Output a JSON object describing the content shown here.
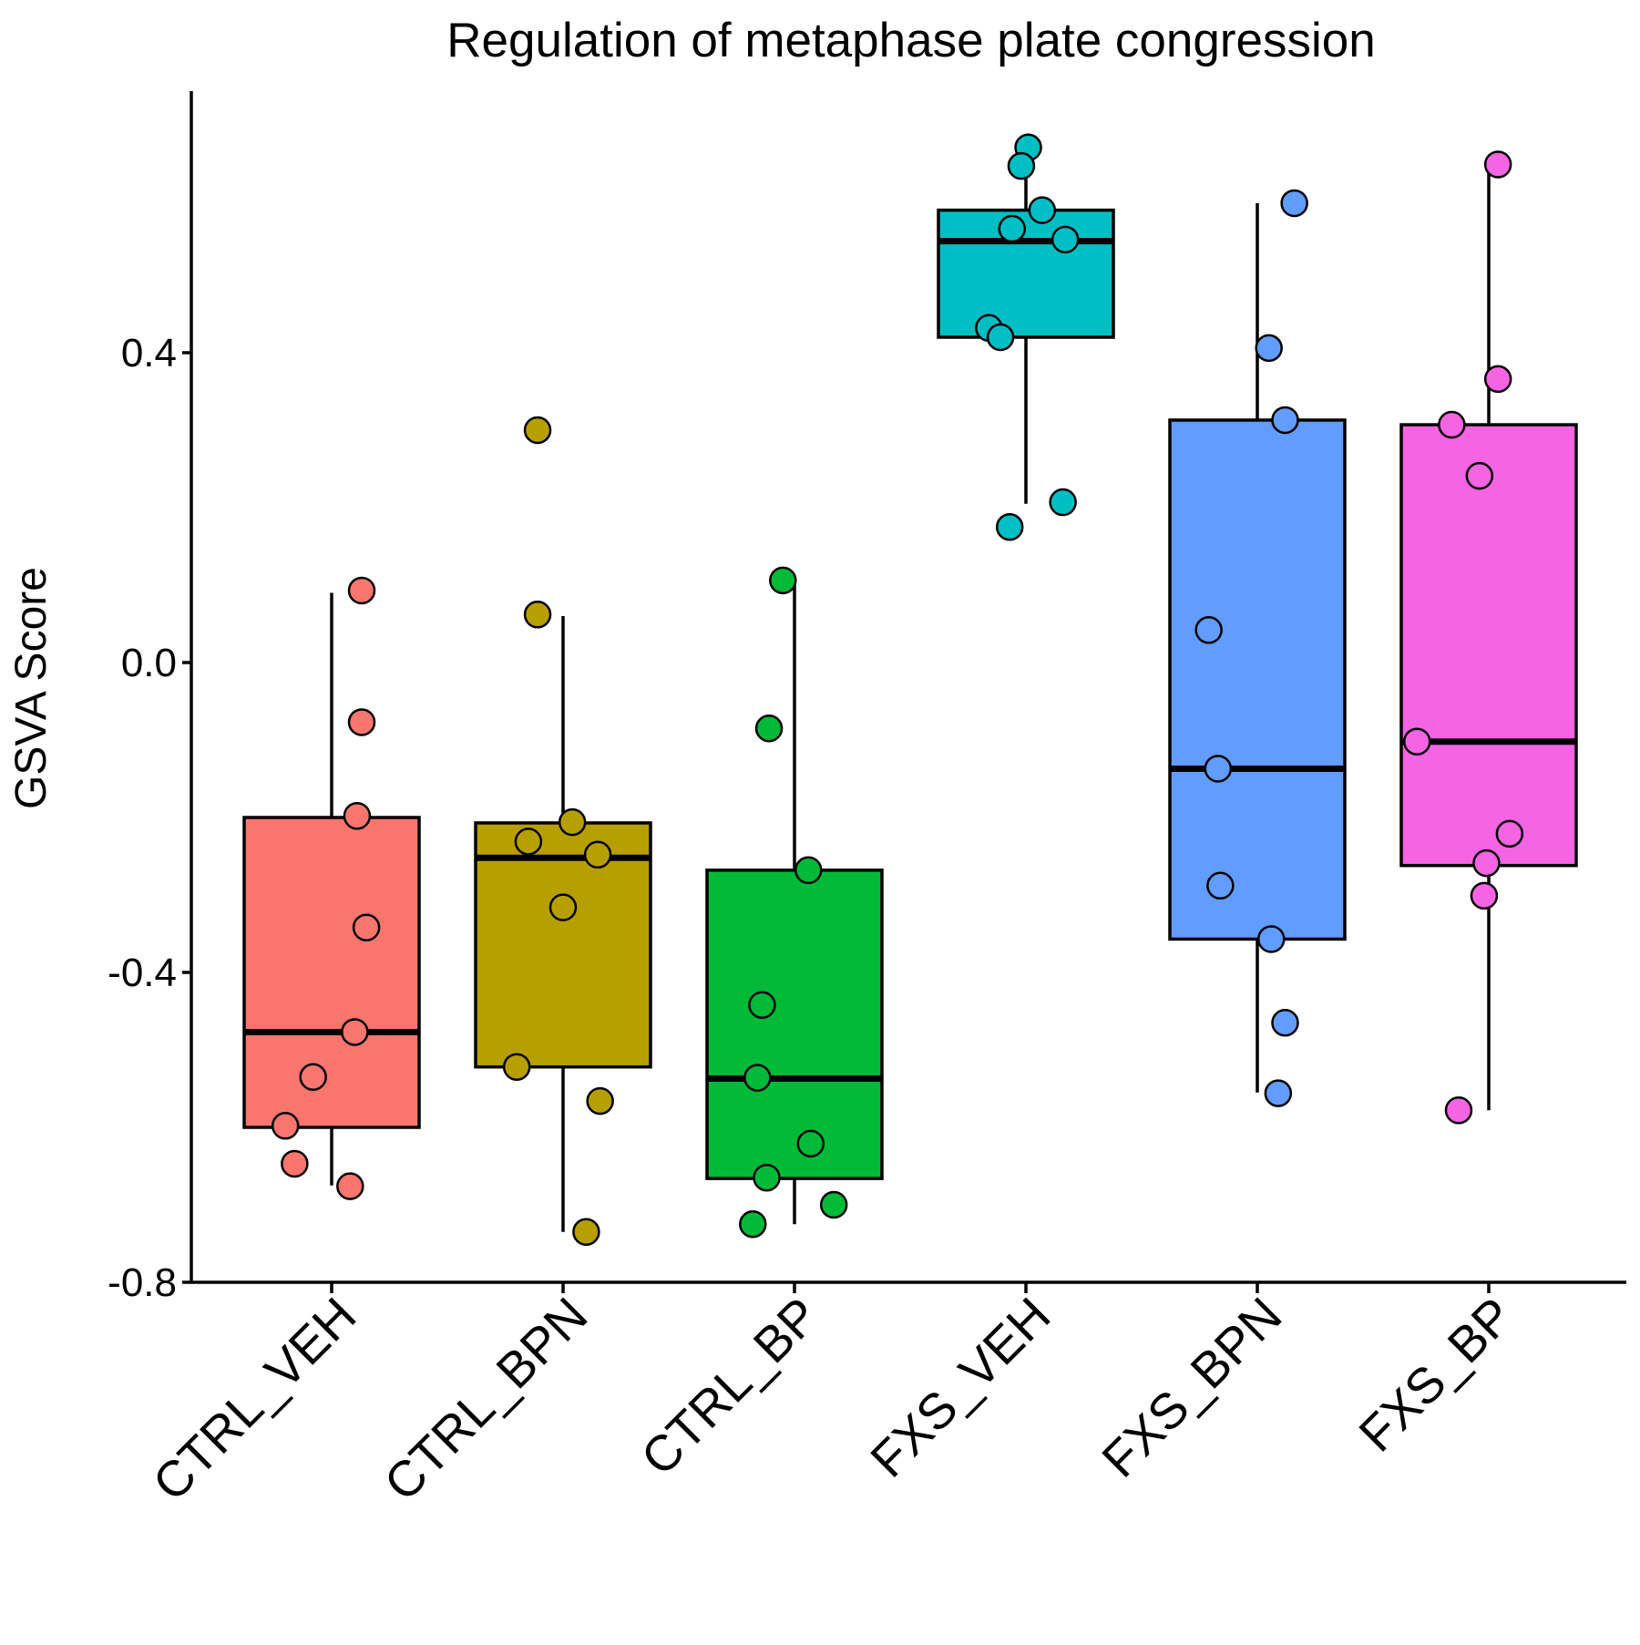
{
  "chart_data": {
    "type": "box",
    "title": "Regulation of metaphase plate congression",
    "xlabel": "",
    "ylabel": "GSVA Score",
    "ylim": [
      -0.8,
      0.74
    ],
    "yticks": [
      -0.8,
      -0.4,
      0.0,
      0.4
    ],
    "ytick_labels": [
      "-0.8",
      "-0.4",
      "0.0",
      "0.4"
    ],
    "grid": false,
    "legend": "none",
    "categories": [
      "CTRL_VEH",
      "CTRL_BPN",
      "CTRL_BP",
      "FXS_VEH",
      "FXS_BPN",
      "FXS_BP"
    ],
    "series": [
      {
        "category": "CTRL_VEH",
        "color": "#F8766D",
        "box": {
          "min": -0.675,
          "q1": -0.6,
          "median": -0.477,
          "q3": -0.2,
          "max": 0.09
        },
        "points": [
          {
            "x_offset": 0.13,
            "y": 0.093
          },
          {
            "x_offset": 0.13,
            "y": -0.077
          },
          {
            "x_offset": 0.11,
            "y": -0.198
          },
          {
            "x_offset": 0.15,
            "y": -0.342
          },
          {
            "x_offset": 0.1,
            "y": -0.477
          },
          {
            "x_offset": -0.08,
            "y": -0.535
          },
          {
            "x_offset": -0.2,
            "y": -0.598
          },
          {
            "x_offset": -0.16,
            "y": -0.647
          },
          {
            "x_offset": 0.08,
            "y": -0.676
          }
        ]
      },
      {
        "category": "CTRL_BPN",
        "color": "#B79F00",
        "box": {
          "min": -0.735,
          "q1": -0.522,
          "median": -0.252,
          "q3": -0.207,
          "max": 0.06
        },
        "points": [
          {
            "x_offset": -0.11,
            "y": 0.3
          },
          {
            "x_offset": -0.11,
            "y": 0.062
          },
          {
            "x_offset": 0.04,
            "y": -0.206
          },
          {
            "x_offset": -0.15,
            "y": -0.231
          },
          {
            "x_offset": 0.15,
            "y": -0.248
          },
          {
            "x_offset": 0.0,
            "y": -0.316
          },
          {
            "x_offset": -0.2,
            "y": -0.522
          },
          {
            "x_offset": 0.16,
            "y": -0.566
          },
          {
            "x_offset": 0.1,
            "y": -0.735
          }
        ]
      },
      {
        "category": "CTRL_BP",
        "color": "#00BA38",
        "box": {
          "min": -0.725,
          "q1": -0.666,
          "median": -0.537,
          "q3": -0.268,
          "max": 0.106
        },
        "points": [
          {
            "x_offset": -0.05,
            "y": 0.106
          },
          {
            "x_offset": -0.11,
            "y": -0.085
          },
          {
            "x_offset": 0.06,
            "y": -0.268
          },
          {
            "x_offset": -0.14,
            "y": -0.442
          },
          {
            "x_offset": -0.16,
            "y": -0.536
          },
          {
            "x_offset": 0.07,
            "y": -0.621
          },
          {
            "x_offset": -0.12,
            "y": -0.665
          },
          {
            "x_offset": 0.17,
            "y": -0.7
          },
          {
            "x_offset": -0.18,
            "y": -0.725
          }
        ]
      },
      {
        "category": "FXS_VEH",
        "color": "#00BFC4",
        "box": {
          "min": 0.205,
          "q1": 0.42,
          "median": 0.544,
          "q3": 0.584,
          "max": 0.625
        },
        "points": [
          {
            "x_offset": 0.01,
            "y": 0.665
          },
          {
            "x_offset": -0.02,
            "y": 0.641
          },
          {
            "x_offset": 0.07,
            "y": 0.584
          },
          {
            "x_offset": -0.06,
            "y": 0.56
          },
          {
            "x_offset": 0.17,
            "y": 0.546
          },
          {
            "x_offset": -0.16,
            "y": 0.432
          },
          {
            "x_offset": -0.11,
            "y": 0.42
          },
          {
            "x_offset": 0.16,
            "y": 0.207
          },
          {
            "x_offset": -0.07,
            "y": 0.175
          }
        ]
      },
      {
        "category": "FXS_BPN",
        "color": "#619CFF",
        "box": {
          "min": -0.555,
          "q1": -0.357,
          "median": -0.137,
          "q3": 0.313,
          "max": 0.593
        },
        "points": [
          {
            "x_offset": 0.16,
            "y": 0.593
          },
          {
            "x_offset": 0.05,
            "y": 0.406
          },
          {
            "x_offset": 0.12,
            "y": 0.313
          },
          {
            "x_offset": -0.21,
            "y": 0.042
          },
          {
            "x_offset": -0.17,
            "y": -0.137
          },
          {
            "x_offset": -0.16,
            "y": -0.288
          },
          {
            "x_offset": 0.06,
            "y": -0.357
          },
          {
            "x_offset": 0.12,
            "y": -0.465
          },
          {
            "x_offset": 0.09,
            "y": -0.556
          }
        ]
      },
      {
        "category": "FXS_BP",
        "color": "#F564E3",
        "box": {
          "min": -0.578,
          "q1": -0.262,
          "median": -0.102,
          "q3": 0.307,
          "max": 0.642
        },
        "points": [
          {
            "x_offset": 0.04,
            "y": 0.643
          },
          {
            "x_offset": 0.04,
            "y": 0.366
          },
          {
            "x_offset": -0.16,
            "y": 0.307
          },
          {
            "x_offset": -0.04,
            "y": 0.241
          },
          {
            "x_offset": -0.31,
            "y": -0.102
          },
          {
            "x_offset": 0.09,
            "y": -0.221
          },
          {
            "x_offset": -0.01,
            "y": -0.259
          },
          {
            "x_offset": -0.02,
            "y": -0.301
          },
          {
            "x_offset": -0.13,
            "y": -0.578
          }
        ]
      }
    ]
  }
}
